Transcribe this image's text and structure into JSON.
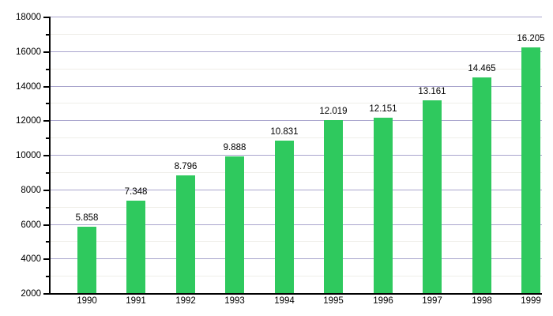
{
  "chart_data": {
    "type": "bar",
    "title": "",
    "xlabel": "",
    "ylabel": "",
    "categories": [
      "1990",
      "1991",
      "1992",
      "1993",
      "1994",
      "1995",
      "1996",
      "1997",
      "1998",
      "1999"
    ],
    "values": [
      5858,
      7348,
      8796,
      9888,
      10831,
      12019,
      12151,
      13161,
      14465,
      16205
    ],
    "value_labels": [
      "5.858",
      "7.348",
      "8.796",
      "9.888",
      "10.831",
      "12.019",
      "12.151",
      "13.161",
      "14.465",
      "16.205"
    ],
    "ylim": [
      2000,
      18000
    ],
    "y_major_step": 2000,
    "y_minor_step": 1000,
    "y_major_tick_labels": [
      "2000",
      "4000",
      "6000",
      "8000",
      "10000",
      "12000",
      "14000",
      "16000",
      "18000"
    ],
    "grid": "horizontal, major and faint minor lines, behind bars",
    "legend": "none",
    "colors": {
      "bar": "#2fc95e",
      "grid_major": "#a9a5cd",
      "grid_minor": "#efeee9",
      "axis": "#000000",
      "text": "#000000",
      "background": "#ffffff"
    }
  }
}
